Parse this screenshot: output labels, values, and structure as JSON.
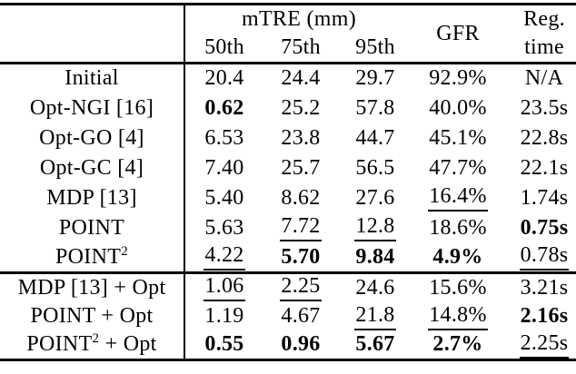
{
  "page": {
    "background_color": "#ffffff",
    "text_color": "#000000",
    "rule_color": "#000000"
  },
  "table": {
    "header": {
      "group_label": "mTRE (mm)",
      "sub_labels": [
        "50th",
        "75th",
        "95th"
      ],
      "gfr_label": "GFR",
      "reg_time_line1": "Reg.",
      "reg_time_line2": "time"
    },
    "sections": [
      {
        "rows": [
          {
            "label_pre": "Initial",
            "label_sup": "",
            "label_post": "",
            "cells": [
              {
                "text": "20.4",
                "style": "normal"
              },
              {
                "text": "24.4",
                "style": "normal"
              },
              {
                "text": "29.7",
                "style": "normal"
              },
              {
                "text": "92.9%",
                "style": "normal"
              },
              {
                "text": "N/A",
                "style": "normal"
              }
            ]
          },
          {
            "label_pre": "Opt-NGI [16]",
            "label_sup": "",
            "label_post": "",
            "cells": [
              {
                "text": "0.62",
                "style": "bold"
              },
              {
                "text": "25.2",
                "style": "normal"
              },
              {
                "text": "57.8",
                "style": "normal"
              },
              {
                "text": "40.0%",
                "style": "normal"
              },
              {
                "text": "23.5s",
                "style": "normal"
              }
            ]
          },
          {
            "label_pre": "Opt-GO [4]",
            "label_sup": "",
            "label_post": "",
            "cells": [
              {
                "text": "6.53",
                "style": "normal"
              },
              {
                "text": "23.8",
                "style": "normal"
              },
              {
                "text": "44.7",
                "style": "normal"
              },
              {
                "text": "45.1%",
                "style": "normal"
              },
              {
                "text": "22.8s",
                "style": "normal"
              }
            ]
          },
          {
            "label_pre": "Opt-GC [4]",
            "label_sup": "",
            "label_post": "",
            "cells": [
              {
                "text": "7.40",
                "style": "normal"
              },
              {
                "text": "25.7",
                "style": "normal"
              },
              {
                "text": "56.5",
                "style": "normal"
              },
              {
                "text": "47.7%",
                "style": "normal"
              },
              {
                "text": "22.1s",
                "style": "normal"
              }
            ]
          },
          {
            "label_pre": "MDP [13]",
            "label_sup": "",
            "label_post": "",
            "cells": [
              {
                "text": "5.40",
                "style": "normal"
              },
              {
                "text": "8.62",
                "style": "normal"
              },
              {
                "text": "27.6",
                "style": "normal"
              },
              {
                "text": "16.4%",
                "style": "underline"
              },
              {
                "text": "1.74s",
                "style": "normal"
              }
            ]
          },
          {
            "label_pre": "POINT",
            "label_sup": "",
            "label_post": "",
            "cells": [
              {
                "text": "5.63",
                "style": "normal"
              },
              {
                "text": "7.72",
                "style": "underline"
              },
              {
                "text": "12.8",
                "style": "underline"
              },
              {
                "text": "18.6%",
                "style": "normal"
              },
              {
                "text": "0.75s",
                "style": "bold"
              }
            ]
          },
          {
            "label_pre": "POINT",
            "label_sup": "2",
            "label_post": "",
            "cells": [
              {
                "text": "4.22",
                "style": "underline"
              },
              {
                "text": "5.70",
                "style": "bold"
              },
              {
                "text": "9.84",
                "style": "bold"
              },
              {
                "text": "4.9%",
                "style": "bold"
              },
              {
                "text": "0.78s",
                "style": "underline"
              }
            ]
          }
        ]
      },
      {
        "rows": [
          {
            "label_pre": "MDP [13] + Opt",
            "label_sup": "",
            "label_post": "",
            "cells": [
              {
                "text": "1.06",
                "style": "underline"
              },
              {
                "text": "2.25",
                "style": "underline"
              },
              {
                "text": "24.6",
                "style": "normal"
              },
              {
                "text": "15.6%",
                "style": "normal"
              },
              {
                "text": "3.21s",
                "style": "normal"
              }
            ]
          },
          {
            "label_pre": "POINT + Opt",
            "label_sup": "",
            "label_post": "",
            "cells": [
              {
                "text": "1.19",
                "style": "normal"
              },
              {
                "text": "4.67",
                "style": "normal"
              },
              {
                "text": "21.8",
                "style": "underline"
              },
              {
                "text": "14.8%",
                "style": "underline"
              },
              {
                "text": "2.16s",
                "style": "bold"
              }
            ]
          },
          {
            "label_pre": "POINT",
            "label_sup": "2",
            "label_post": " + Opt",
            "cells": [
              {
                "text": "0.55",
                "style": "bold"
              },
              {
                "text": "0.96",
                "style": "bold"
              },
              {
                "text": "5.67",
                "style": "bold"
              },
              {
                "text": "2.7%",
                "style": "bold"
              },
              {
                "text": "2.25s",
                "style": "underline"
              }
            ]
          }
        ]
      }
    ]
  }
}
